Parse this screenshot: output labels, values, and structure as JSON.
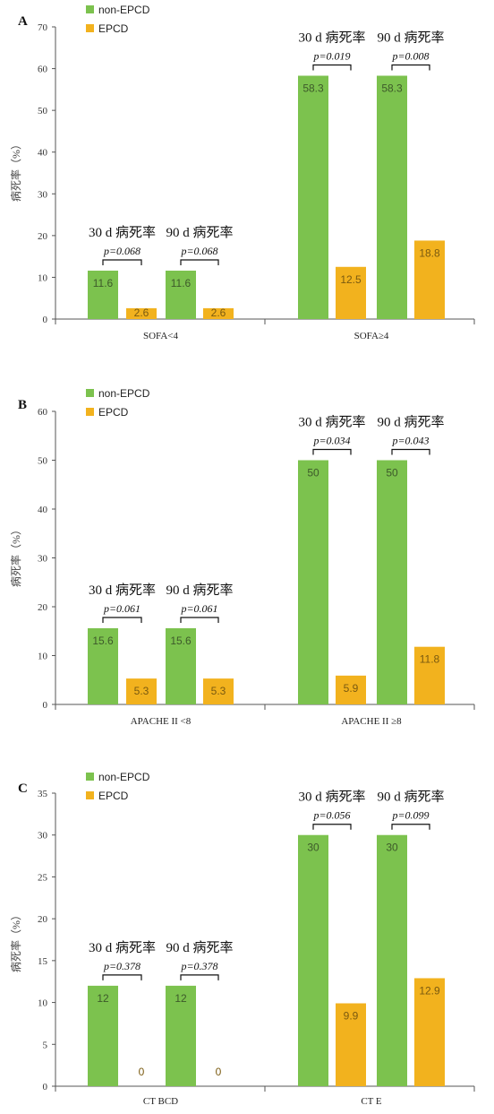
{
  "colors": {
    "non_epcd": "#7cc24e",
    "epcd": "#f2b21e",
    "axis": "#555555",
    "value_on_green": "#3d5a2a",
    "value_on_orange": "#7a5a10"
  },
  "chart_data": [
    {
      "type": "bar",
      "panel": "A",
      "ylabel": "病死率（%）",
      "ylim": [
        0,
        70
      ],
      "yticks": [
        0,
        10,
        20,
        30,
        40,
        50,
        60,
        70
      ],
      "legend": [
        "non-EPCD",
        "EPCD"
      ],
      "legend_position": "top-left",
      "groups": [
        {
          "label": "SOFA<4",
          "bars": [
            {
              "series": "non-EPCD",
              "value": 11.6,
              "label": "11.6"
            },
            {
              "series": "EPCD",
              "value": 2.6,
              "label": "2.6"
            },
            {
              "series": "non-EPCD",
              "value": 11.6,
              "label": "11.6"
            },
            {
              "series": "EPCD",
              "value": 2.6,
              "label": "2.6"
            }
          ],
          "annotations": [
            {
              "title": "30 d 病死率",
              "p": "p=0.068"
            },
            {
              "title": "90 d 病死率",
              "p": "p=0.068"
            }
          ]
        },
        {
          "label": "SOFA≥4",
          "bars": [
            {
              "series": "non-EPCD",
              "value": 58.3,
              "label": "58.3"
            },
            {
              "series": "EPCD",
              "value": 12.5,
              "label": "12.5"
            },
            {
              "series": "non-EPCD",
              "value": 58.3,
              "label": "58.3"
            },
            {
              "series": "EPCD",
              "value": 18.8,
              "label": "18.8"
            }
          ],
          "annotations": [
            {
              "title": "30 d 病死率",
              "p": "p=0.019"
            },
            {
              "title": "90 d 病死率",
              "p": "p=0.008"
            }
          ]
        }
      ]
    },
    {
      "type": "bar",
      "panel": "B",
      "ylabel": "病死率（%）",
      "ylim": [
        0,
        60
      ],
      "yticks": [
        0,
        10,
        20,
        30,
        40,
        50,
        60
      ],
      "legend": [
        "non-EPCD",
        "EPCD"
      ],
      "legend_position": "top-left",
      "groups": [
        {
          "label": "APACHE II <8",
          "bars": [
            {
              "series": "non-EPCD",
              "value": 15.6,
              "label": "15.6"
            },
            {
              "series": "EPCD",
              "value": 5.3,
              "label": "5.3"
            },
            {
              "series": "non-EPCD",
              "value": 15.6,
              "label": "15.6"
            },
            {
              "series": "EPCD",
              "value": 5.3,
              "label": "5.3"
            }
          ],
          "annotations": [
            {
              "title": "30 d 病死率",
              "p": "p=0.061"
            },
            {
              "title": "90 d 病死率",
              "p": "p=0.061"
            }
          ]
        },
        {
          "label": "APACHE II ≥8",
          "bars": [
            {
              "series": "non-EPCD",
              "value": 50,
              "label": "50"
            },
            {
              "series": "EPCD",
              "value": 5.9,
              "label": "5.9"
            },
            {
              "series": "non-EPCD",
              "value": 50,
              "label": "50"
            },
            {
              "series": "EPCD",
              "value": 11.8,
              "label": "11.8"
            }
          ],
          "annotations": [
            {
              "title": "30 d 病死率",
              "p": "p=0.034"
            },
            {
              "title": "90 d 病死率",
              "p": "p=0.043"
            }
          ]
        }
      ]
    },
    {
      "type": "bar",
      "panel": "C",
      "ylabel": "病死率（%）",
      "ylim": [
        0,
        35
      ],
      "yticks": [
        0,
        5,
        10,
        15,
        20,
        25,
        30,
        35
      ],
      "legend": [
        "non-EPCD",
        "EPCD"
      ],
      "legend_position": "top-left",
      "groups": [
        {
          "label": "CT BCD",
          "bars": [
            {
              "series": "non-EPCD",
              "value": 12,
              "label": "12"
            },
            {
              "series": "EPCD",
              "value": 0,
              "label": "0"
            },
            {
              "series": "non-EPCD",
              "value": 12,
              "label": "12"
            },
            {
              "series": "EPCD",
              "value": 0,
              "label": "0"
            }
          ],
          "annotations": [
            {
              "title": "30 d 病死率",
              "p": "p=0.378"
            },
            {
              "title": "90 d 病死率",
              "p": "p=0.378"
            }
          ]
        },
        {
          "label": "CT E",
          "bars": [
            {
              "series": "non-EPCD",
              "value": 30,
              "label": "30"
            },
            {
              "series": "EPCD",
              "value": 9.9,
              "label": "9.9"
            },
            {
              "series": "non-EPCD",
              "value": 30,
              "label": "30"
            },
            {
              "series": "EPCD",
              "value": 12.9,
              "label": "12.9"
            }
          ],
          "annotations": [
            {
              "title": "30 d 病死率",
              "p": "p=0.056"
            },
            {
              "title": "90 d 病死率",
              "p": "p=0.099"
            }
          ]
        }
      ]
    }
  ]
}
